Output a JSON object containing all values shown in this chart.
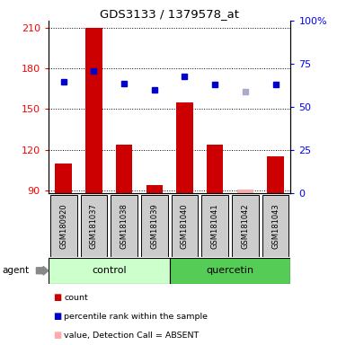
{
  "title": "GDS3133 / 1379578_at",
  "samples": [
    "GSM180920",
    "GSM181037",
    "GSM181038",
    "GSM181039",
    "GSM181040",
    "GSM181041",
    "GSM181042",
    "GSM181043"
  ],
  "bar_values": [
    110,
    210,
    124,
    94,
    155,
    124,
    91,
    115
  ],
  "bar_absent": [
    false,
    false,
    false,
    false,
    false,
    false,
    true,
    false
  ],
  "rank_values": [
    170,
    178,
    169,
    164,
    174,
    168,
    163,
    168
  ],
  "rank_absent": [
    false,
    false,
    false,
    false,
    false,
    false,
    true,
    false
  ],
  "ylim_left": [
    88,
    215
  ],
  "yticks_left": [
    90,
    120,
    150,
    180,
    210
  ],
  "yticks_right": [
    0,
    25,
    50,
    75,
    100
  ],
  "right_tick_labels": [
    "0",
    "25",
    "50",
    "75",
    "100%"
  ],
  "bar_color": "#cc0000",
  "bar_absent_color": "#ffaaaa",
  "rank_color": "#0000cc",
  "rank_absent_color": "#aaaacc",
  "control_bg": "#ccffcc",
  "quercetin_bg": "#55cc55",
  "sample_area_bg": "#cccccc",
  "figsize": [
    3.85,
    3.84
  ],
  "dpi": 100
}
